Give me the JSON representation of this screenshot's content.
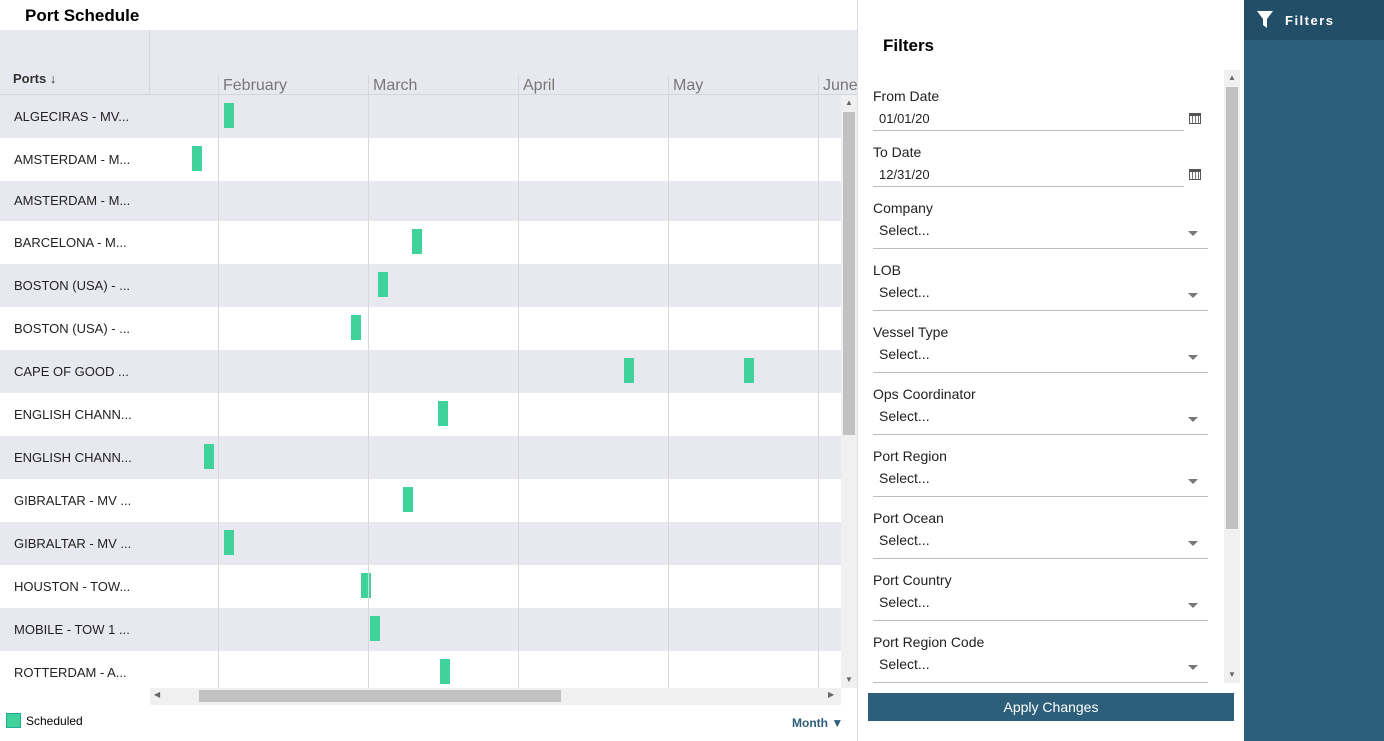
{
  "header": {
    "title": "Port Schedule"
  },
  "schedule": {
    "column_header": "Ports",
    "months": [
      "February",
      "March",
      "April",
      "May",
      "June"
    ],
    "rows": [
      "ALGECIRAS - MV...",
      "AMSTERDAM - M...",
      "AMSTERDAM - M...",
      "BARCELONA - M...",
      "BOSTON (USA) - ...",
      "BOSTON (USA) - ...",
      "CAPE OF GOOD ...",
      "ENGLISH CHANN...",
      "ENGLISH CHANN...",
      "GIBRALTAR - MV ...",
      "GIBRALTAR - MV ...",
      "HOUSTON - TOW...",
      "MOBILE - TOW 1 ...",
      "ROTTERDAM - A..."
    ],
    "legend": "Scheduled",
    "view": "Month"
  },
  "filters": {
    "title": "Filters",
    "dates": [
      {
        "label": "From Date",
        "value": "01/01/20"
      },
      {
        "label": "To Date",
        "value": "12/31/20"
      }
    ],
    "selects": [
      {
        "label": "Company",
        "value": "Select..."
      },
      {
        "label": "LOB",
        "value": "Select..."
      },
      {
        "label": "Vessel Type",
        "value": "Select..."
      },
      {
        "label": "Ops Coordinator",
        "value": "Select..."
      },
      {
        "label": "Port Region",
        "value": "Select..."
      },
      {
        "label": "Port Ocean",
        "value": "Select..."
      },
      {
        "label": "Port Country",
        "value": "Select..."
      },
      {
        "label": "Port Region Code",
        "value": "Select..."
      }
    ],
    "apply": "Apply Changes"
  },
  "sidebar": {
    "tab": "Filters"
  }
}
